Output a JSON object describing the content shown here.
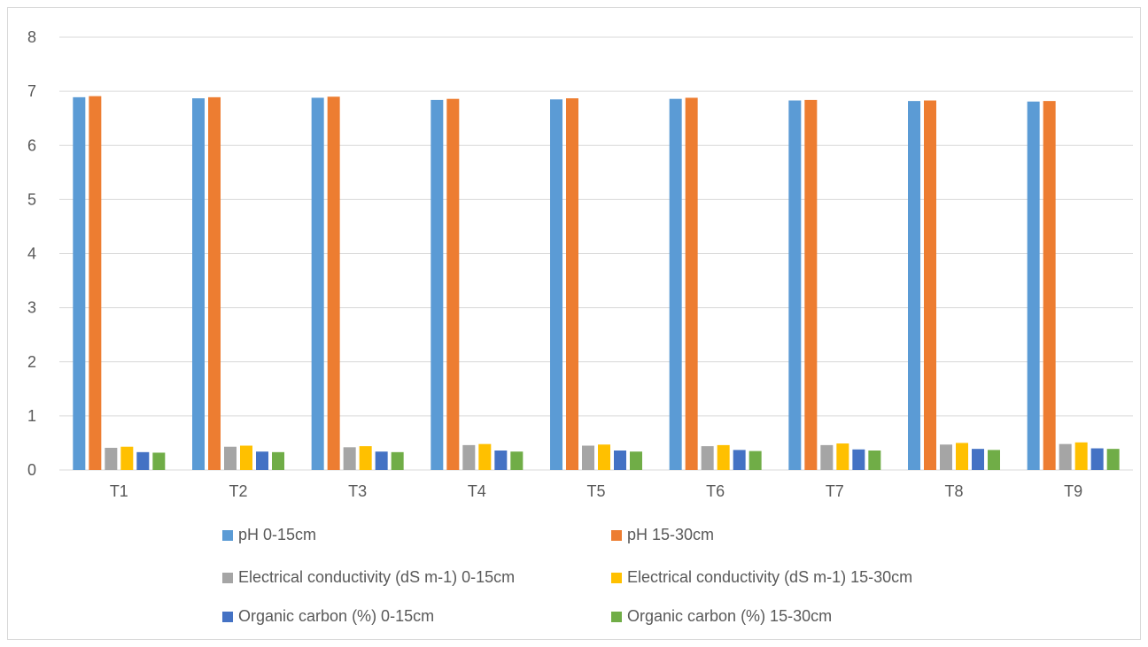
{
  "chart_data": {
    "type": "bar",
    "title": "",
    "xlabel": "",
    "ylabel": "",
    "ylim": [
      0,
      8
    ],
    "yticks": [
      0,
      1,
      2,
      3,
      4,
      5,
      6,
      7,
      8
    ],
    "grid": true,
    "legend_position": "bottom",
    "categories": [
      "T1",
      "T2",
      "T3",
      "T4",
      "T5",
      "T6",
      "T7",
      "T8",
      "T9"
    ],
    "series": [
      {
        "name": "pH 0-15cm",
        "color": "#5B9BD5",
        "values": [
          6.89,
          6.87,
          6.88,
          6.84,
          6.85,
          6.86,
          6.83,
          6.82,
          6.81
        ]
      },
      {
        "name": "pH 15-30cm",
        "color": "#ED7D31",
        "values": [
          6.91,
          6.89,
          6.9,
          6.86,
          6.87,
          6.88,
          6.84,
          6.83,
          6.82
        ]
      },
      {
        "name": "Electrical conductivity (dS m-1) 0-15cm",
        "color": "#A5A5A5",
        "values": [
          0.41,
          0.43,
          0.42,
          0.46,
          0.45,
          0.44,
          0.46,
          0.47,
          0.48
        ]
      },
      {
        "name": "Electrical conductivity (dS m-1) 15-30cm",
        "color": "#FFC000",
        "values": [
          0.43,
          0.45,
          0.44,
          0.48,
          0.47,
          0.46,
          0.49,
          0.5,
          0.51
        ]
      },
      {
        "name": "Organic carbon (%) 0-15cm",
        "color": "#4472C4",
        "values": [
          0.33,
          0.34,
          0.34,
          0.36,
          0.36,
          0.37,
          0.38,
          0.39,
          0.4
        ]
      },
      {
        "name": "Organic carbon (%) 15-30cm",
        "color": "#70AD47",
        "values": [
          0.32,
          0.33,
          0.33,
          0.34,
          0.34,
          0.35,
          0.36,
          0.37,
          0.39
        ]
      }
    ]
  }
}
